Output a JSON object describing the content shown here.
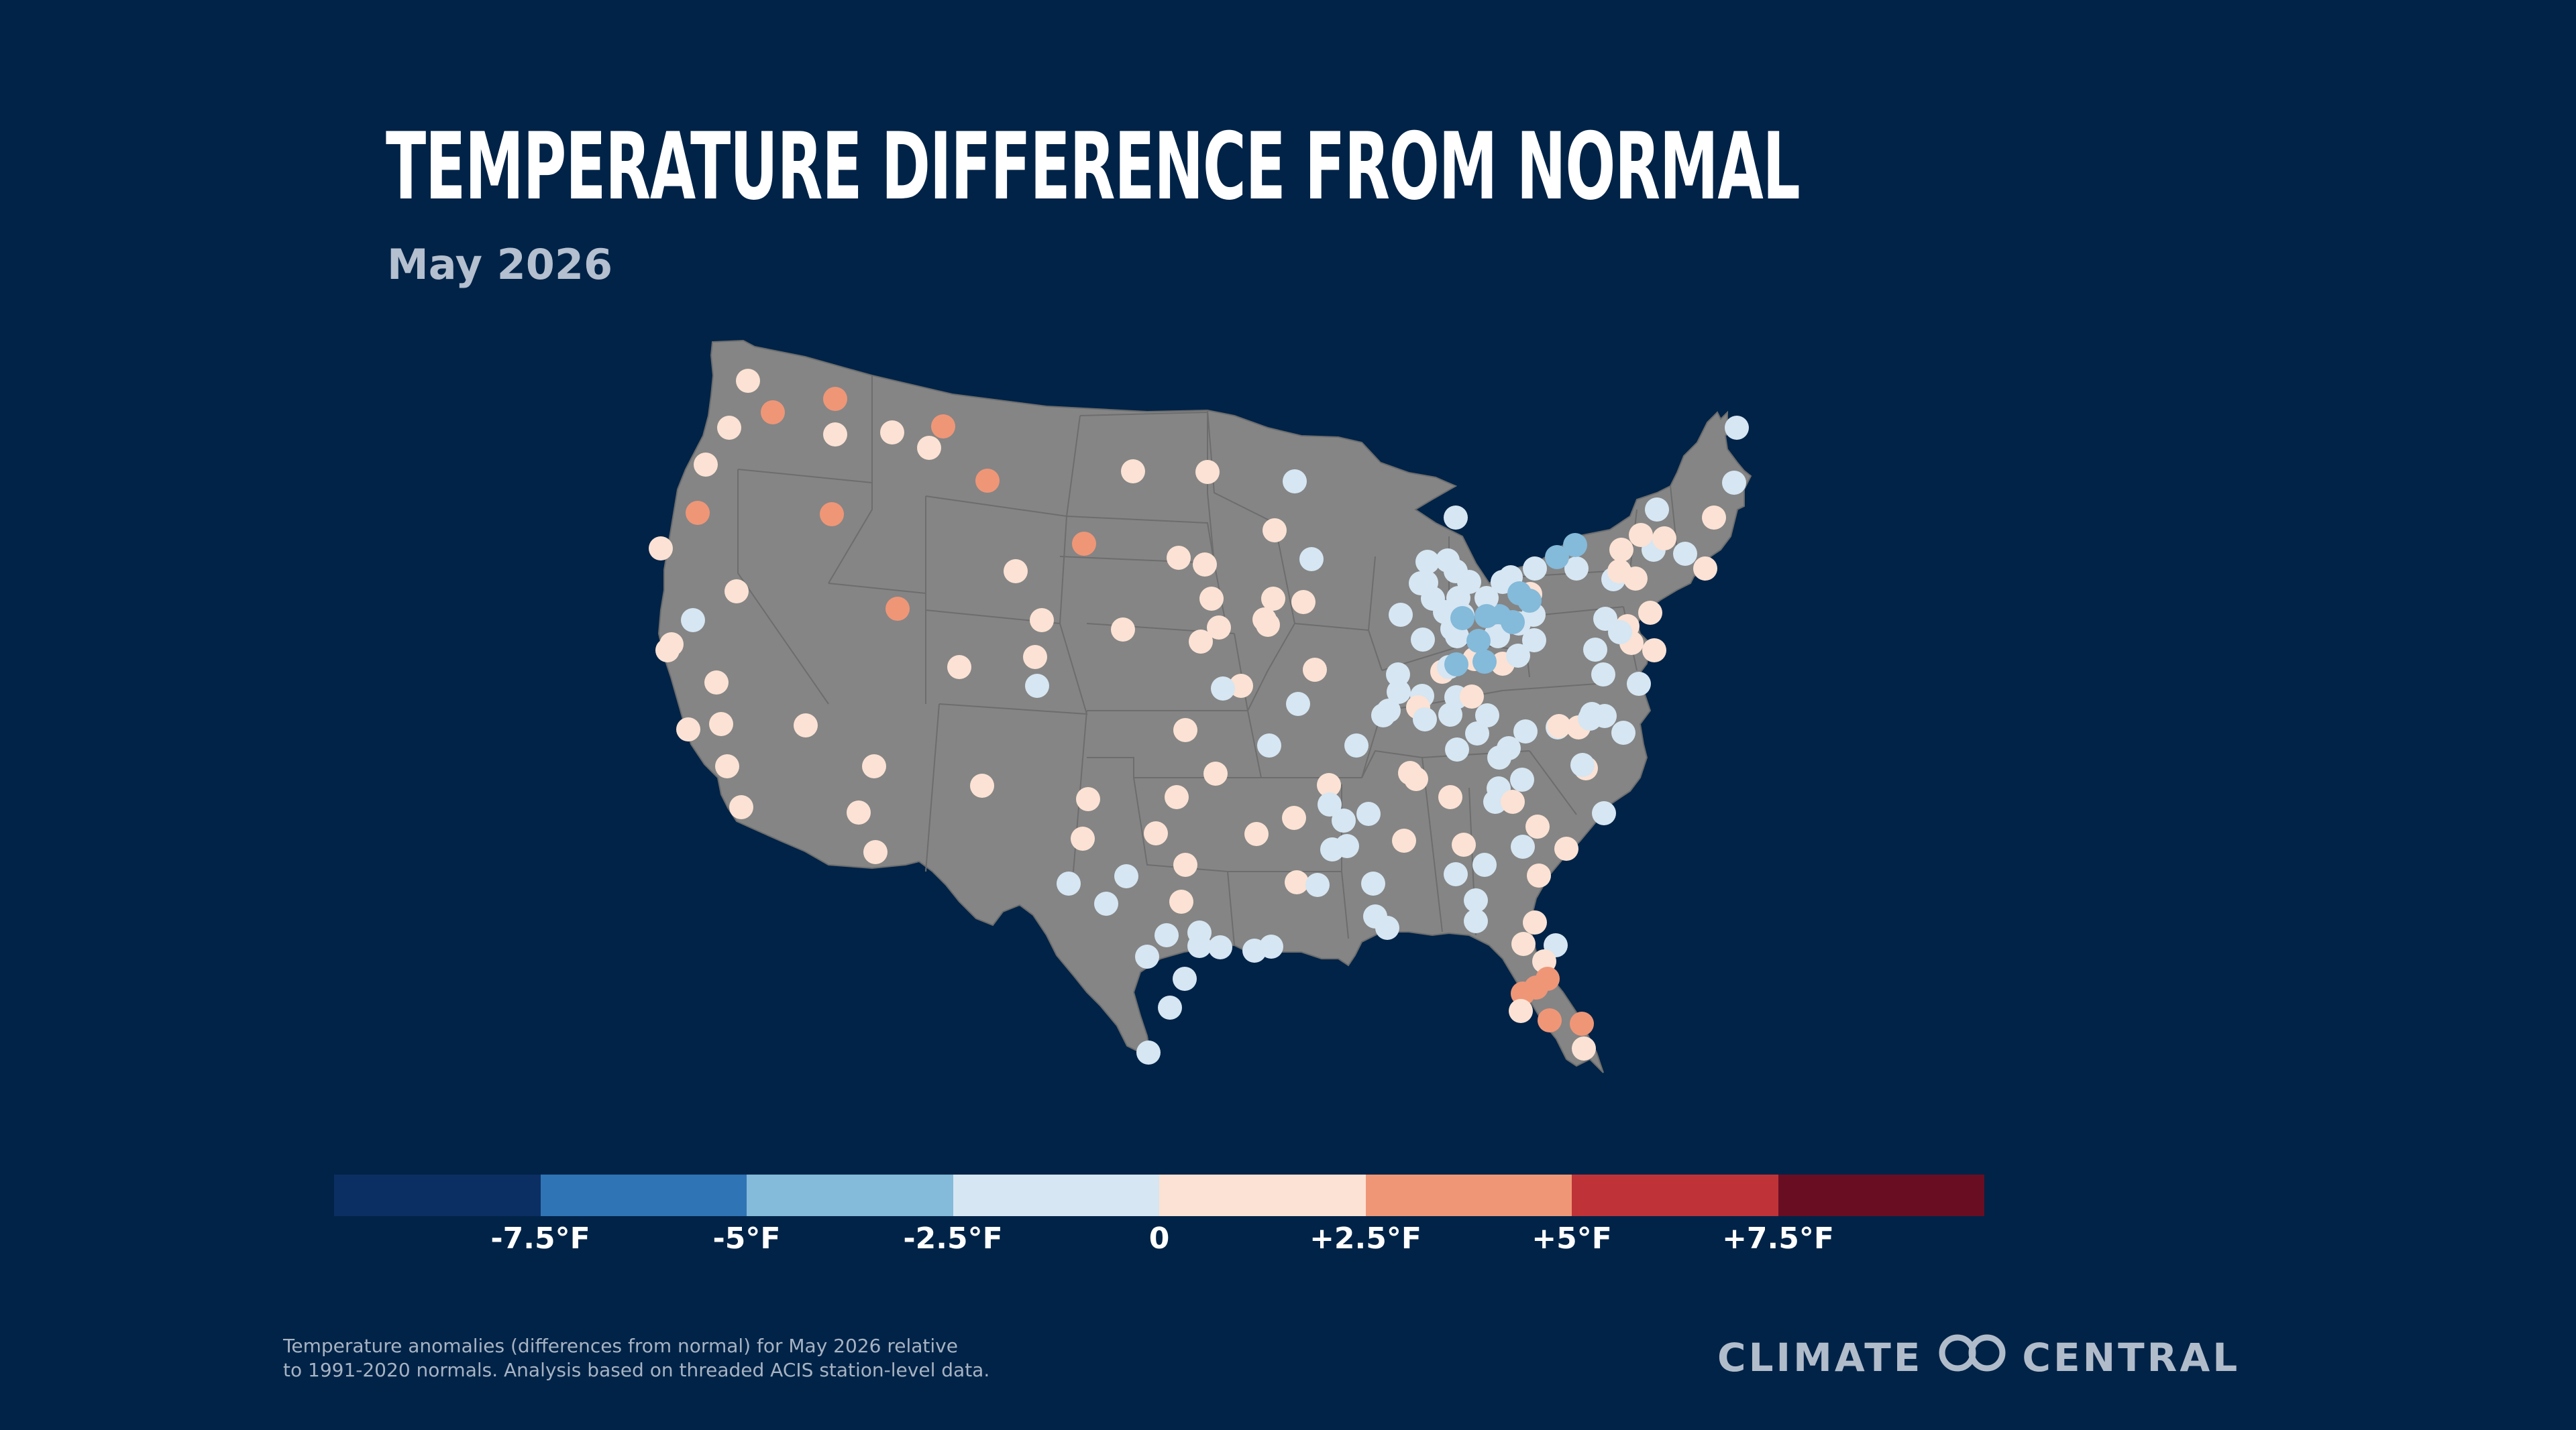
{
  "header": {
    "title": "TEMPERATURE DIFFERENCE FROM NORMAL",
    "subtitle": "May 2026"
  },
  "legend": {
    "colors": [
      "#0b2f62",
      "#2f74b5",
      "#84bada",
      "#d6e6f2",
      "#fbe2d4",
      "#ef9677",
      "#bf3338",
      "#690d23"
    ],
    "labels": [
      "-7.5°F",
      "-5°F",
      "-2.5°F",
      "0",
      "+2.5°F",
      "+5°F",
      "+7.5°F"
    ]
  },
  "map": {
    "land_color": "#858585",
    "border_color": "#6d6d6d"
  },
  "footnote": {
    "line1": "Temperature anomalies (differences from normal) for May 2026 relative",
    "line2": "to 1991-2020 normals. Analysis based on threaded ACIS station-level data."
  },
  "brand": {
    "left": "CLIMATE",
    "right": "CENTRAL",
    "logo_icon": "climate-central-rings-icon"
  }
}
